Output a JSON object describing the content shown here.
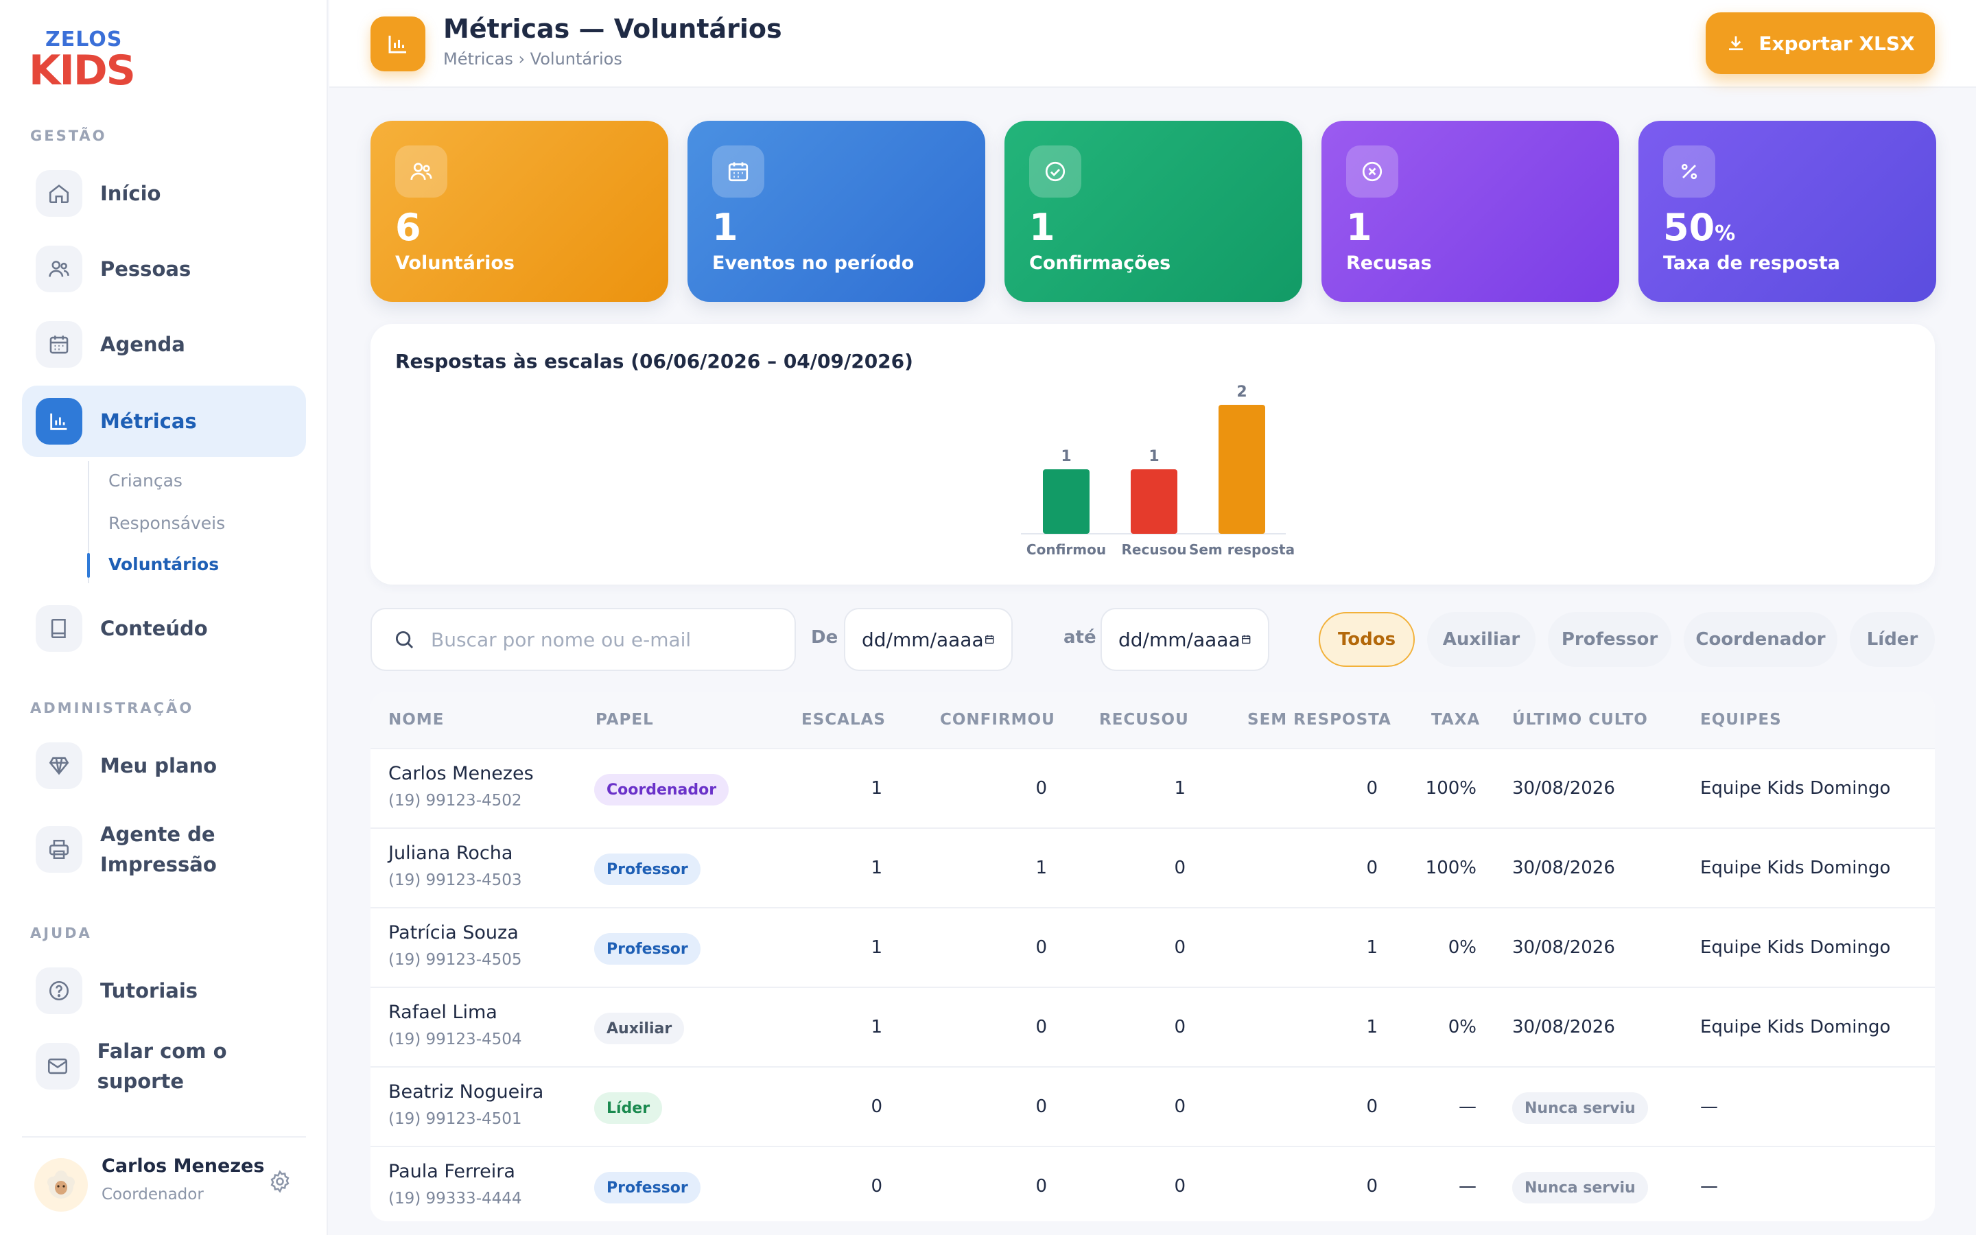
{
  "brand": {
    "logo_top": "ZELOS",
    "logo_bottom": "KIDS"
  },
  "sidebar": {
    "sections": {
      "gestao": "GESTÃO",
      "admin": "ADMINISTRAÇÃO",
      "ajuda": "AJUDA"
    },
    "items": [
      {
        "label": "Início",
        "icon": "home-icon"
      },
      {
        "label": "Pessoas",
        "icon": "users-icon"
      },
      {
        "label": "Agenda",
        "icon": "calendar-icon"
      },
      {
        "label": "Métricas",
        "icon": "chart-icon"
      },
      {
        "label": "Conteúdo",
        "icon": "book-icon"
      },
      {
        "label": "Meu plano",
        "icon": "diamond-icon"
      },
      {
        "label": "Agente de Impressão",
        "icon": "printer-icon"
      },
      {
        "label": "Tutoriais",
        "icon": "help-icon"
      },
      {
        "label": "Falar com o suporte",
        "icon": "mail-icon"
      }
    ],
    "subitems": [
      "Crianças",
      "Responsáveis",
      "Voluntários"
    ],
    "user": {
      "name": "Carlos Menezes",
      "role": "Coordenador"
    }
  },
  "header": {
    "title": "Métricas — Voluntários",
    "breadcrumb": "Métricas › Voluntários",
    "export_label": "Exportar XLSX"
  },
  "kpis": [
    {
      "value": "6",
      "unit": "",
      "label": "Voluntários",
      "color_from": "#f6b03a",
      "color_to": "#ec930f",
      "icon": "users-icon"
    },
    {
      "value": "1",
      "unit": "",
      "label": "Eventos no período",
      "color_from": "#4a90e2",
      "color_to": "#2f6fd3",
      "icon": "calendar-icon"
    },
    {
      "value": "1",
      "unit": "",
      "label": "Confirmações",
      "color_from": "#23b47a",
      "color_to": "#129b66",
      "icon": "check-circle-icon"
    },
    {
      "value": "1",
      "unit": "",
      "label": "Recusas",
      "color_from": "#9b5bf0",
      "color_to": "#7a3ee6",
      "icon": "x-circle-icon"
    },
    {
      "value": "50",
      "unit": "%",
      "label": "Taxa de resposta",
      "color_from": "#7b5cf0",
      "color_to": "#5b4ddf",
      "icon": "percent-icon"
    }
  ],
  "chart_data": {
    "type": "bar",
    "title": "Respostas às escalas (06/06/2026 – 04/09/2026)",
    "categories": [
      "Confirmou",
      "Recusou",
      "Sem resposta"
    ],
    "values": [
      1,
      1,
      2
    ],
    "colors": [
      "#129b66",
      "#e53b2c",
      "#ec930f"
    ],
    "ylim": [
      0,
      2
    ],
    "xlabel": "",
    "ylabel": ""
  },
  "filters": {
    "search_placeholder": "Buscar por nome ou e-mail",
    "from_label": "De",
    "to_label": "até",
    "date_placeholder": "dd/mm/aaaa",
    "chips": [
      "Todos",
      "Auxiliar",
      "Professor",
      "Coordenador",
      "Líder"
    ]
  },
  "table": {
    "headers": [
      "NOME",
      "PAPEL",
      "ESCALAS",
      "CONFIRMOU",
      "RECUSOU",
      "SEM RESPOSTA",
      "TAXA",
      "ÚLTIMO CULTO",
      "EQUIPES"
    ],
    "rows": [
      {
        "name": "Carlos Menezes",
        "phone": "(19) 99123-4502",
        "role": "Coordenador",
        "escalas": "1",
        "confirmou": "0",
        "recusou": "1",
        "sem_resposta": "0",
        "taxa": "100%",
        "ultimo": "30/08/2026",
        "equipes": "Equipe Kids Domingo"
      },
      {
        "name": "Juliana Rocha",
        "phone": "(19) 99123-4503",
        "role": "Professor",
        "escalas": "1",
        "confirmou": "1",
        "recusou": "0",
        "sem_resposta": "0",
        "taxa": "100%",
        "ultimo": "30/08/2026",
        "equipes": "Equipe Kids Domingo"
      },
      {
        "name": "Patrícia Souza",
        "phone": "(19) 99123-4505",
        "role": "Professor",
        "escalas": "1",
        "confirmou": "0",
        "recusou": "0",
        "sem_resposta": "1",
        "taxa": "0%",
        "ultimo": "30/08/2026",
        "equipes": "Equipe Kids Domingo"
      },
      {
        "name": "Rafael Lima",
        "phone": "(19) 99123-4504",
        "role": "Auxiliar",
        "escalas": "1",
        "confirmou": "0",
        "recusou": "0",
        "sem_resposta": "1",
        "taxa": "0%",
        "ultimo": "30/08/2026",
        "equipes": "Equipe Kids Domingo"
      },
      {
        "name": "Beatriz Nogueira",
        "phone": "(19) 99123-4501",
        "role": "Líder",
        "escalas": "0",
        "confirmou": "0",
        "recusou": "0",
        "sem_resposta": "0",
        "taxa": "—",
        "ultimo": "Nunca serviu",
        "equipes": "—"
      },
      {
        "name": "Paula Ferreira",
        "phone": "(19) 99333-4444",
        "role": "Professor",
        "escalas": "0",
        "confirmou": "0",
        "recusou": "0",
        "sem_resposta": "0",
        "taxa": "—",
        "ultimo": "Nunca serviu",
        "equipes": "—"
      }
    ]
  },
  "role_colors": {
    "Coordenador": {
      "bg": "#efe6fd",
      "fg": "#6a32c9"
    },
    "Professor": {
      "bg": "#e4eefc",
      "fg": "#1e5fb5"
    },
    "Auxiliar": {
      "bg": "#f1f3f8",
      "fg": "#4a5568"
    },
    "Líder": {
      "bg": "#e3f6ea",
      "fg": "#1a8a4f"
    }
  }
}
